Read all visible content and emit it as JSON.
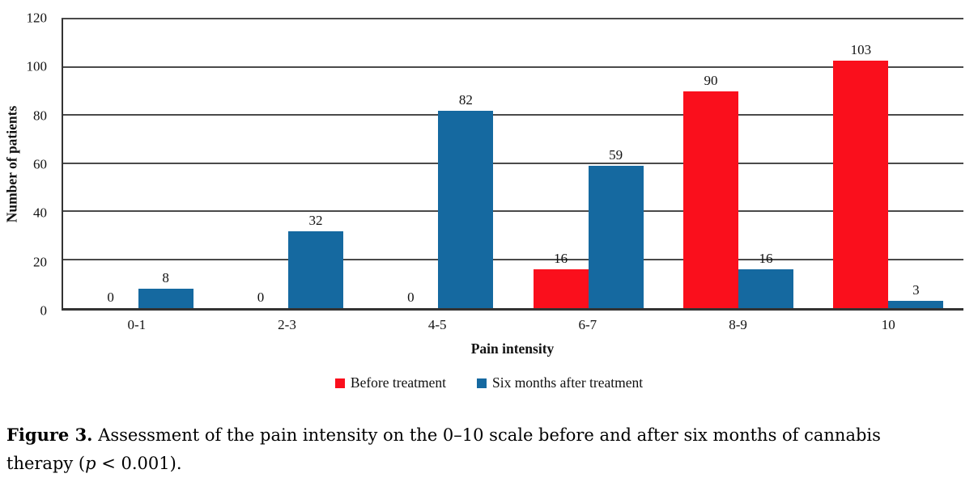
{
  "chart_data": {
    "type": "bar",
    "categories": [
      "0-1",
      "2-3",
      "4-5",
      "6-7",
      "8-9",
      "10"
    ],
    "series": [
      {
        "name": "Before treatment",
        "color": "#fa0f1c",
        "values": [
          0,
          0,
          0,
          16,
          90,
          103
        ]
      },
      {
        "name": "Six months after treatment",
        "color": "#1569a0",
        "values": [
          8,
          32,
          82,
          59,
          16,
          3
        ]
      }
    ],
    "xlabel": "Pain intensity",
    "ylabel": "Number of patients",
    "ylim": [
      0,
      120
    ],
    "yticks": [
      0,
      20,
      40,
      60,
      80,
      100,
      120
    ],
    "grid": true,
    "legend_position": "bottom"
  },
  "caption": {
    "label": "Figure 3.",
    "line1": "Assessment of the pain intensity on the 0–10 scale before and after six months of cannabis",
    "line2_pre": "therapy (",
    "line2_italic": "p",
    "line2_post": " < 0.001)."
  }
}
